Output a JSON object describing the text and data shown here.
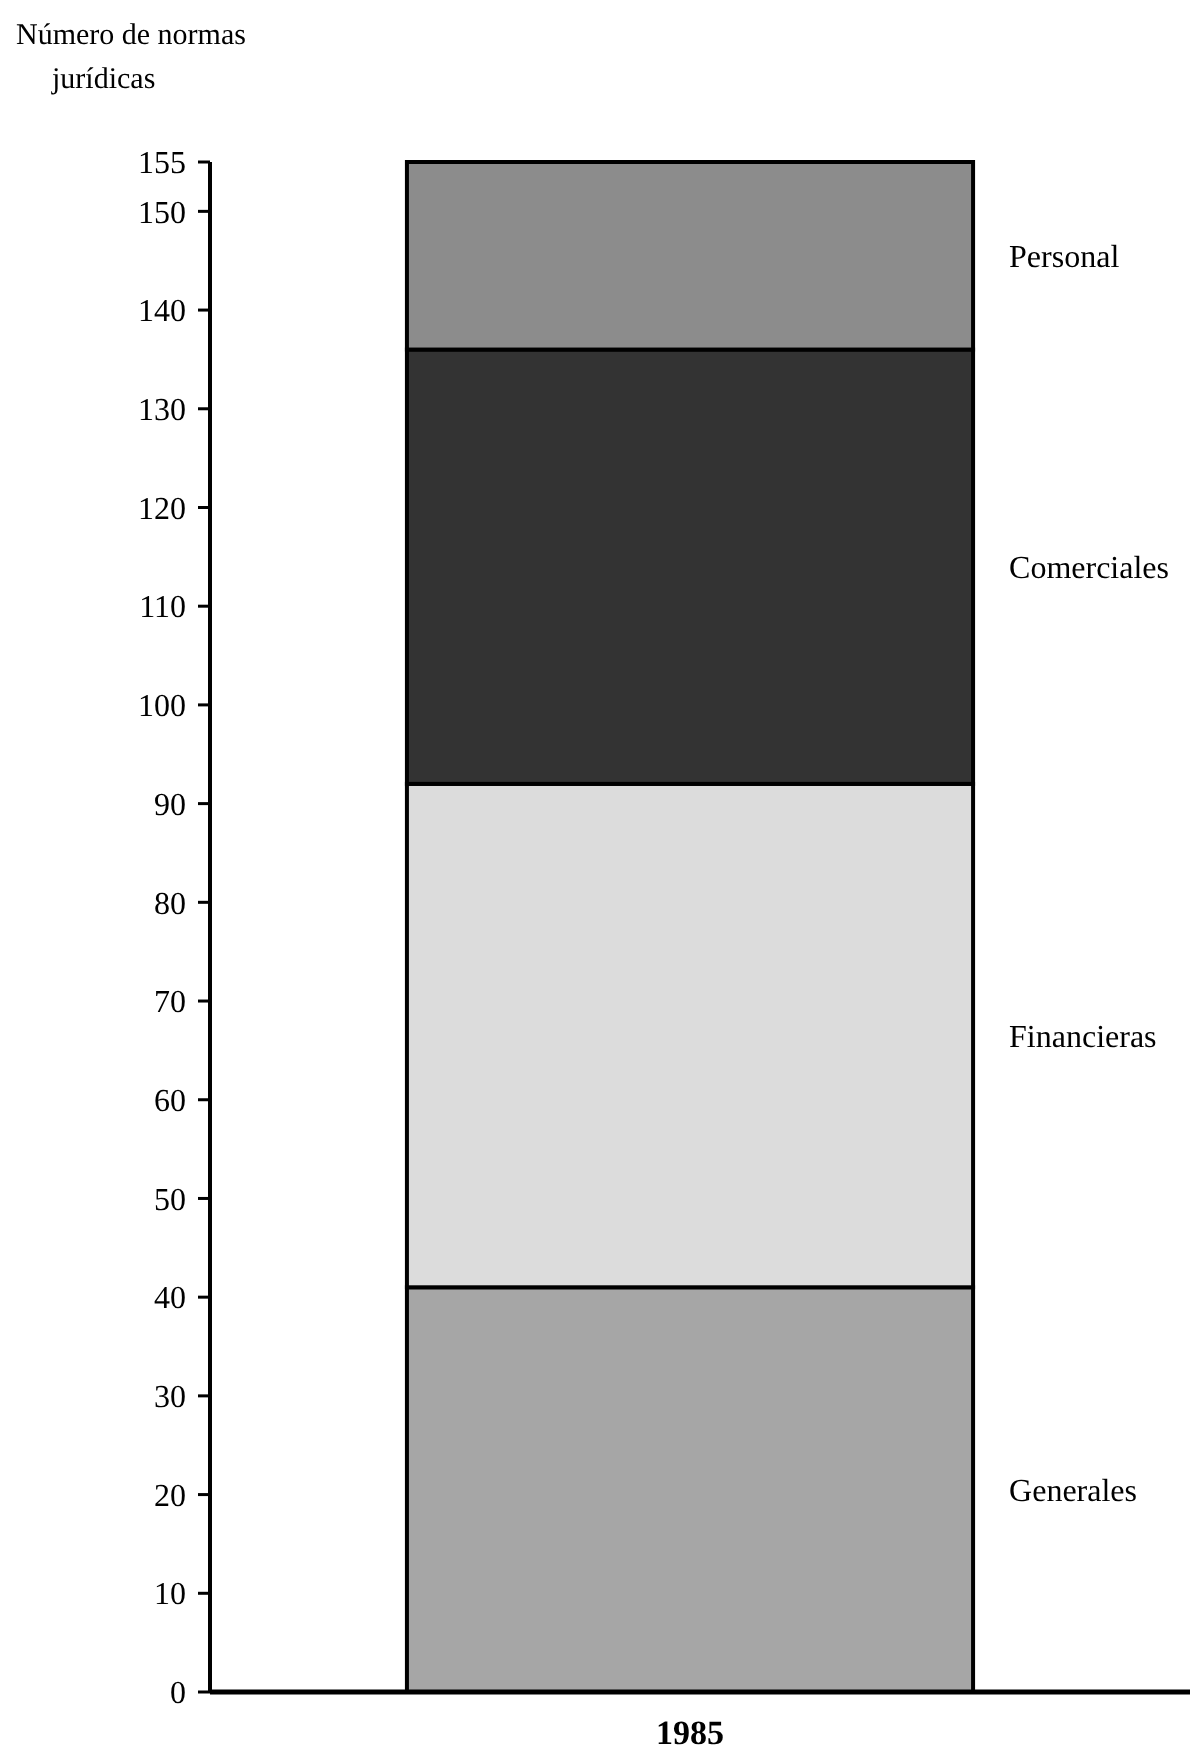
{
  "chart_data": {
    "type": "bar",
    "ylabel": "Número de normas jurídicas",
    "categories": [
      "1985"
    ],
    "stacked": true,
    "ylim": [
      0,
      155
    ],
    "yticks": [
      0,
      10,
      20,
      30,
      40,
      50,
      60,
      70,
      80,
      90,
      100,
      110,
      120,
      130,
      140,
      150,
      155
    ],
    "legend": false,
    "series": [
      {
        "name": "Generales",
        "color": "#a6a6a6",
        "values": [
          41
        ]
      },
      {
        "name": "Financieras",
        "color": "#dcdcdc",
        "values": [
          51
        ]
      },
      {
        "name": "Comerciales",
        "color": "#333333",
        "values": [
          44
        ]
      },
      {
        "name": "Personal",
        "color": "#8c8c8c",
        "values": [
          19
        ]
      }
    ]
  }
}
